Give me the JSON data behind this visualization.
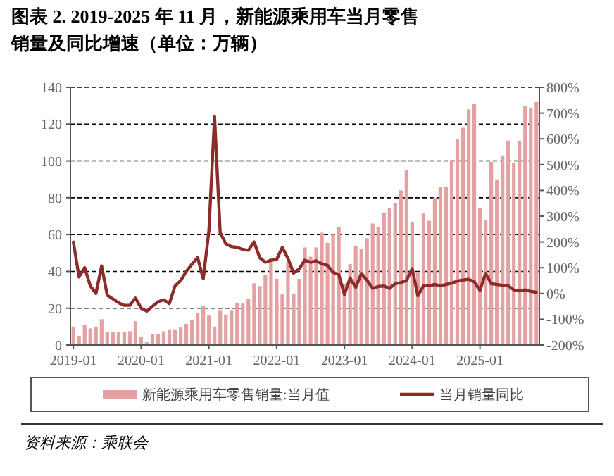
{
  "chart_data": {
    "type": "bar",
    "title": "图表 2. 2019-2025 年 11 月，新能源乘用车当月零售销量及同比增速（单位：万辆）",
    "categories": [
      "2019-01",
      null,
      null,
      null,
      null,
      null,
      null,
      null,
      null,
      null,
      null,
      null,
      "2020-01",
      null,
      null,
      null,
      null,
      null,
      null,
      null,
      null,
      null,
      null,
      null,
      "2021-01",
      null,
      null,
      null,
      null,
      null,
      null,
      null,
      null,
      null,
      null,
      null,
      "2022-01",
      null,
      null,
      null,
      null,
      null,
      null,
      null,
      null,
      null,
      null,
      null,
      "2023-01",
      null,
      null,
      null,
      null,
      null,
      null,
      null,
      null,
      null,
      null,
      null,
      "2024-01",
      null,
      null,
      null,
      null,
      null,
      null,
      null,
      null,
      null,
      null,
      null,
      "2025-01",
      null,
      null,
      null,
      null,
      null,
      null,
      null,
      null,
      null,
      null
    ],
    "series": [
      {
        "name": "新能源乘用车零售销量:当月值",
        "color": "#e3a1a1",
        "values": [
          10,
          5,
          11,
          9,
          10,
          14,
          7,
          7,
          7,
          7,
          7.5,
          13,
          4.5,
          1.5,
          6,
          6,
          7.5,
          8.5,
          8.5,
          9.5,
          11.5,
          13.5,
          17.5,
          21,
          16,
          10,
          19,
          16.5,
          19,
          23,
          22.5,
          25,
          33.5,
          32,
          38,
          47,
          36,
          27.5,
          45,
          28,
          36,
          53,
          48,
          53,
          61,
          55.5,
          60,
          64,
          33,
          44,
          54,
          52,
          58,
          66,
          64,
          72,
          74.5,
          77,
          84,
          95,
          67,
          39,
          71.5,
          67.5,
          80,
          86,
          86,
          100.5,
          112,
          118,
          128,
          131,
          74.5,
          68,
          99.5,
          90,
          103,
          111,
          99,
          111,
          130,
          129,
          132
        ]
      },
      {
        "name": "当月销量同比",
        "type": "line",
        "axis": "y2",
        "color": "#8e2b2b",
        "values": [
          200,
          64,
          100,
          29,
          0,
          107,
          -7,
          -21,
          -36,
          -46,
          -46,
          -18,
          -57,
          -68,
          -50,
          -32,
          -25,
          -39,
          29,
          50,
          86,
          114,
          139,
          57,
          243,
          686,
          236,
          193,
          182,
          179,
          171,
          168,
          200,
          139,
          121,
          129,
          132,
          179,
          136,
          79,
          96,
          129,
          121,
          127,
          115,
          109,
          82,
          73,
          -4,
          60,
          24,
          78,
          51,
          20,
          27,
          29,
          20,
          38,
          42,
          51,
          96,
          -9,
          30,
          30,
          35,
          30,
          35,
          40,
          48,
          52,
          55,
          45,
          12,
          78,
          38,
          35,
          32,
          30,
          14,
          10,
          14,
          8,
          5
        ]
      }
    ],
    "ylim": [
      0,
      140
    ],
    "yticks": [
      0,
      20,
      40,
      60,
      80,
      100,
      120,
      140
    ],
    "y2lim": [
      -200,
      800
    ],
    "y2ticks": [
      {
        "value": 800,
        "label": "800%"
      },
      {
        "value": 700,
        "label": "700%"
      },
      {
        "value": 600,
        "label": "600%"
      },
      {
        "value": 500,
        "label": "500%"
      },
      {
        "value": 400,
        "label": "400%"
      },
      {
        "value": 300,
        "label": "300%"
      },
      {
        "value": 200,
        "label": "200%"
      },
      {
        "value": 100,
        "label": "100%"
      },
      {
        "value": 0,
        "label": "0%"
      },
      {
        "value": -100,
        "label": "-100%"
      },
      {
        "value": -200,
        "label": "-200%"
      }
    ],
    "grid": "y",
    "legend": "bottom",
    "annotations": [
      "资料来源：乘联会"
    ]
  }
}
